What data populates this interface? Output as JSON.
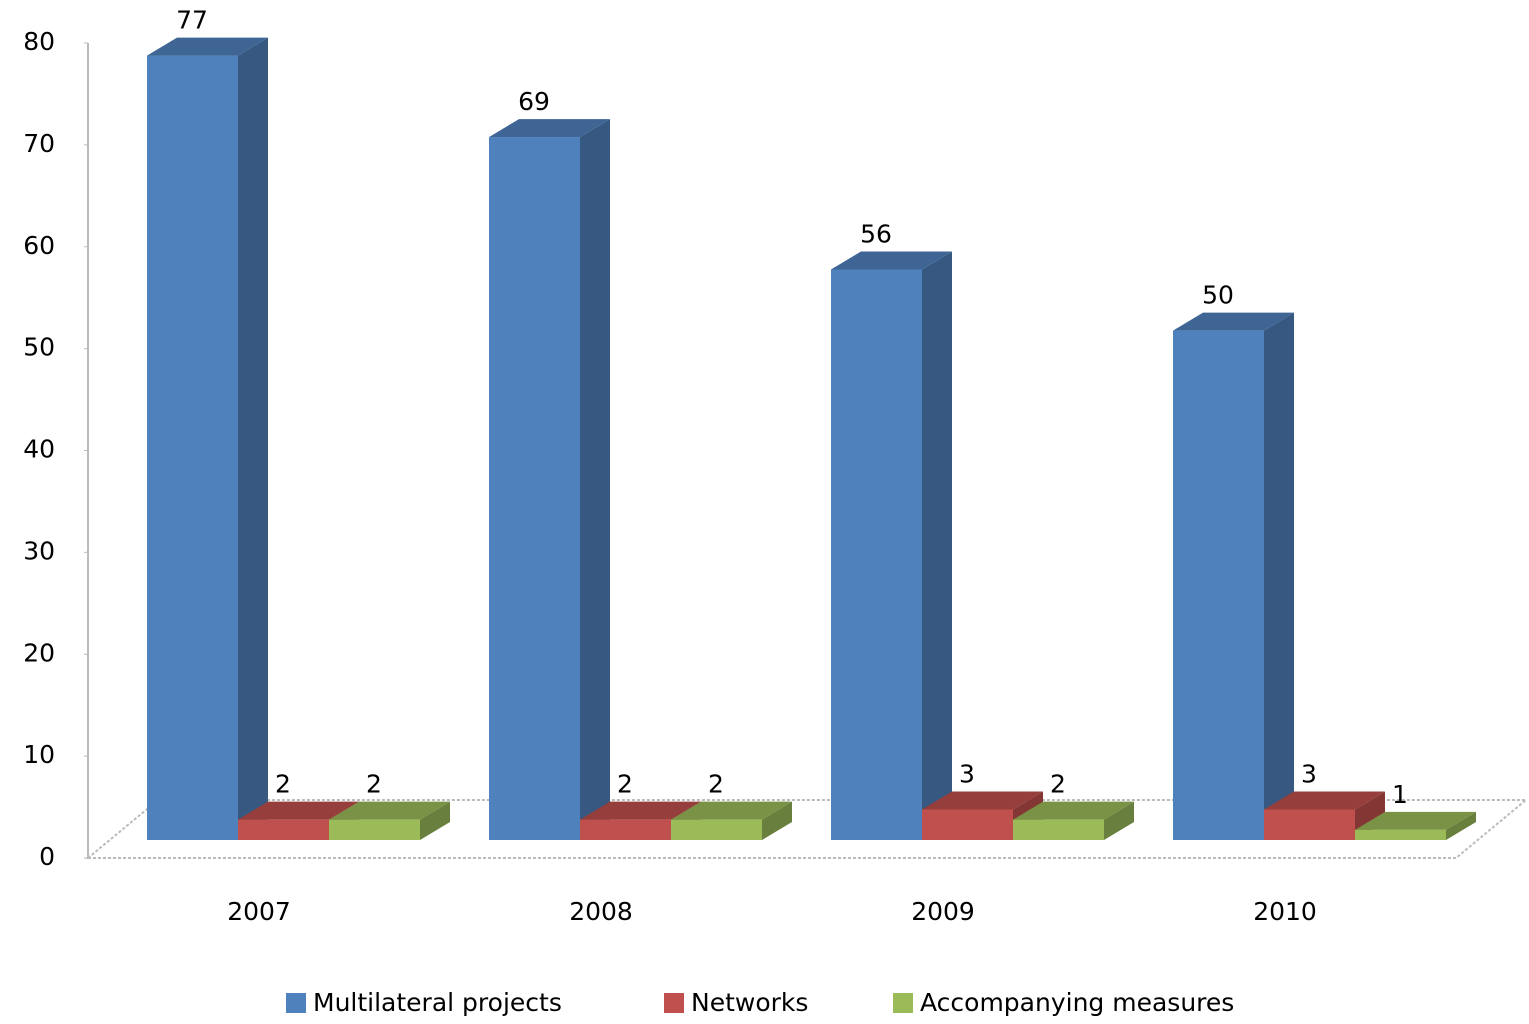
{
  "chart_data": {
    "type": "bar3d",
    "categories": [
      "2007",
      "2008",
      "2009",
      "2010"
    ],
    "series": [
      {
        "name": "Multilateral projects",
        "color": "#4f81bd",
        "values": [
          77,
          69,
          56,
          50
        ]
      },
      {
        "name": "Networks",
        "color": "#c0504d",
        "values": [
          2,
          2,
          3,
          3
        ]
      },
      {
        "name": "Accompanying measures",
        "color": "#9bbb59",
        "values": [
          2,
          2,
          2,
          1
        ]
      }
    ],
    "ylim": [
      0,
      80
    ],
    "yticks": [
      0,
      10,
      20,
      30,
      40,
      50,
      60,
      70,
      80
    ]
  }
}
